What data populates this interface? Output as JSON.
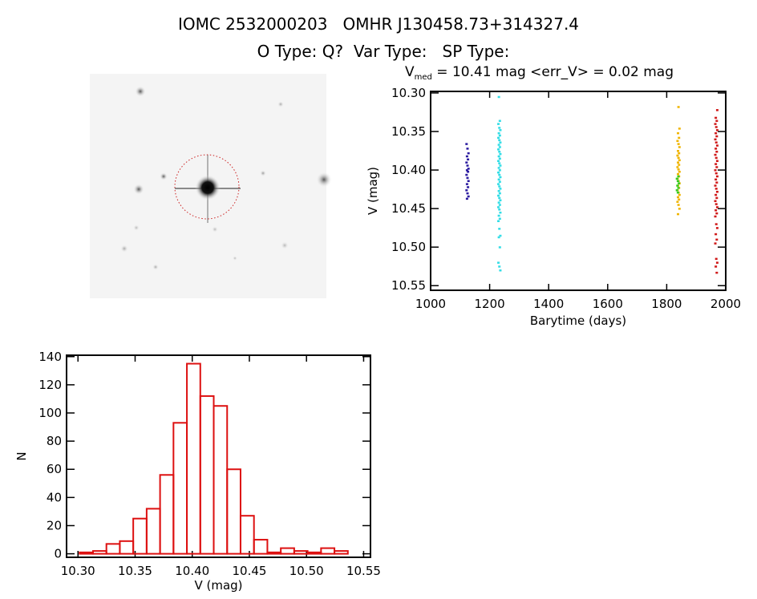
{
  "header": {
    "line1": "IOMC 2532000203   OMHR J130458.73+314327.4",
    "line2": "O Type: Q?  Var Type:   SP Type:"
  },
  "image_panel": {
    "description_icon": "star-field-thumbnail",
    "circle_color": "#cc2222"
  },
  "chart_data": [
    {
      "type": "scatter",
      "title_main": "V",
      "title_sub": "med",
      "title_rest": " = 10.41 mag <err_V> = 0.02 mag",
      "xlabel": "Barytime (days)",
      "ylabel": "V (mag)",
      "xlim": [
        1000,
        2000
      ],
      "ylim": [
        10.556,
        10.298
      ],
      "y_reversed": true,
      "xticks": [
        "1000",
        "1200",
        "1400",
        "1600",
        "1800",
        "2000"
      ],
      "xtick_values": [
        1000,
        1200,
        1400,
        1600,
        1800,
        2000
      ],
      "yticks": [
        "10.30",
        "10.35",
        "10.40",
        "10.45",
        "10.50",
        "10.55"
      ],
      "ytick_values": [
        10.3,
        10.35,
        10.4,
        10.45,
        10.5,
        10.55
      ],
      "grid": false,
      "series": [
        {
          "color": "#2a1aa0",
          "x": 1125,
          "y": [
            10.366,
            10.372,
            10.378,
            10.382,
            10.386,
            10.39,
            10.394,
            10.398,
            10.4,
            10.402,
            10.406,
            10.41,
            10.414,
            10.418,
            10.422,
            10.426,
            10.43,
            10.434,
            10.437
          ]
        },
        {
          "color": "#33dde6",
          "x": 1233,
          "y": [
            10.305,
            10.336,
            10.34,
            10.345,
            10.348,
            10.352,
            10.355,
            10.358,
            10.361,
            10.364,
            10.367,
            10.37,
            10.373,
            10.376,
            10.379,
            10.382,
            10.385,
            10.388,
            10.391,
            10.394,
            10.397,
            10.4,
            10.403,
            10.406,
            10.409,
            10.412,
            10.415,
            10.418,
            10.421,
            10.424,
            10.427,
            10.43,
            10.433,
            10.436,
            10.439,
            10.442,
            10.445,
            10.448,
            10.451,
            10.455,
            10.459,
            10.463,
            10.466,
            10.476,
            10.485,
            10.487,
            10.5,
            10.52,
            10.525,
            10.53
          ]
        },
        {
          "color": "#f0b400",
          "x": 1840,
          "y": [
            10.318,
            10.346,
            10.352,
            10.358,
            10.362,
            10.366,
            10.37,
            10.375,
            10.378,
            10.381,
            10.384,
            10.387,
            10.39,
            10.393,
            10.396,
            10.399,
            10.402,
            10.405,
            10.408,
            10.411,
            10.414,
            10.417,
            10.42,
            10.423,
            10.426,
            10.429,
            10.432,
            10.435,
            10.438,
            10.441,
            10.445,
            10.45,
            10.457
          ]
        },
        {
          "color": "#33cc22",
          "x": 1838,
          "y": [
            10.408,
            10.411,
            10.414,
            10.417,
            10.42,
            10.423,
            10.426,
            10.429
          ]
        },
        {
          "color": "#d01818",
          "x": 1968,
          "y": [
            10.322,
            10.332,
            10.336,
            10.34,
            10.344,
            10.348,
            10.352,
            10.356,
            10.36,
            10.364,
            10.368,
            10.372,
            10.376,
            10.38,
            10.384,
            10.388,
            10.392,
            10.396,
            10.4,
            10.404,
            10.408,
            10.412,
            10.416,
            10.42,
            10.424,
            10.428,
            10.432,
            10.436,
            10.44,
            10.444,
            10.448,
            10.452,
            10.456,
            10.46,
            10.47,
            10.475,
            10.483,
            10.49,
            10.495,
            10.515,
            10.52,
            10.525,
            10.533
          ]
        }
      ]
    },
    {
      "type": "bar",
      "style": "histogram-outline",
      "color": "#dd1111",
      "xlabel": "V (mag)",
      "ylabel": "N",
      "xlim": [
        10.29,
        10.556
      ],
      "ylim": [
        -2.5,
        141
      ],
      "xticks": [
        "10.30",
        "10.35",
        "10.40",
        "10.45",
        "10.50",
        "10.55"
      ],
      "xtick_values": [
        10.3,
        10.35,
        10.4,
        10.45,
        10.5,
        10.55
      ],
      "yticks": [
        "0",
        "20",
        "40",
        "60",
        "80",
        "100",
        "120",
        "140"
      ],
      "ytick_values": [
        0,
        20,
        40,
        60,
        80,
        100,
        120,
        140
      ],
      "bin_start": 10.3014,
      "bin_width": 0.01174,
      "values": [
        1,
        2,
        7,
        9,
        25,
        32,
        56,
        93,
        135,
        112,
        105,
        60,
        27,
        10,
        1,
        4,
        2,
        1,
        4,
        2
      ]
    }
  ]
}
